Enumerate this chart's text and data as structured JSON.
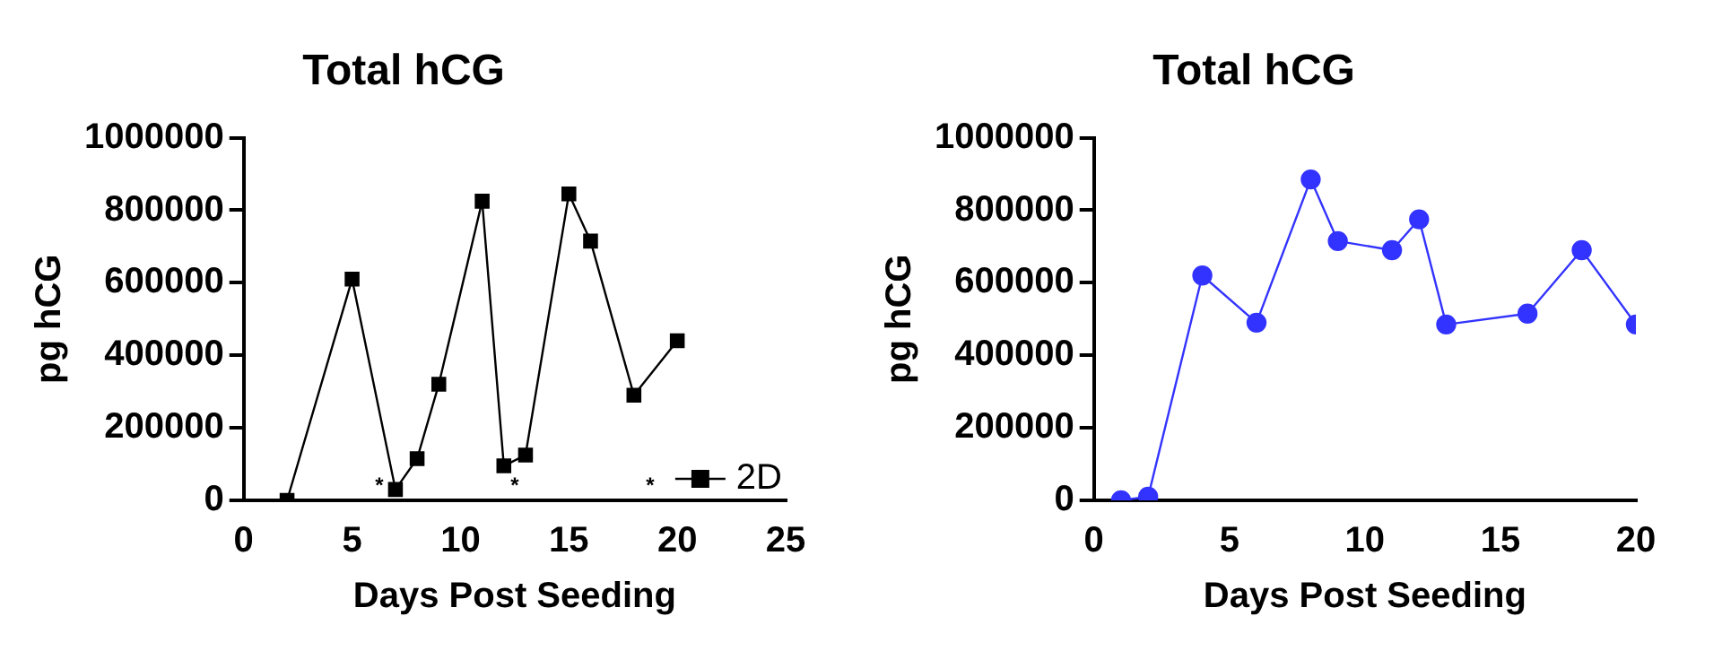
{
  "chart_data": [
    {
      "type": "line",
      "title": "Total hCG",
      "xlabel": "Days Post Seeding",
      "ylabel": "pg hCG",
      "x": [
        2,
        5,
        7,
        8,
        9,
        11,
        12,
        13,
        15,
        16,
        18,
        20
      ],
      "series": [
        {
          "name": "2D",
          "color": "#000000",
          "values": [
            0,
            610000,
            30000,
            115000,
            320000,
            825000,
            95000,
            125000,
            845000,
            715000,
            290000,
            440000
          ]
        }
      ],
      "xlim": [
        0,
        25
      ],
      "xticks": [
        0,
        5,
        10,
        15,
        20,
        25
      ],
      "ylim": [
        0,
        1000000
      ],
      "yticks": [
        0,
        200000,
        400000,
        600000,
        800000,
        1000000
      ],
      "marker": "square",
      "legend": "bottom right",
      "grid": false,
      "annotations": [
        "*",
        "*",
        "*"
      ]
    },
    {
      "type": "line",
      "title": "Total hCG",
      "xlabel": "Days Post Seeding",
      "ylabel": "pg hCG",
      "x": [
        1,
        2,
        4,
        6,
        8,
        9,
        11,
        12,
        13,
        16,
        18,
        20
      ],
      "series": [
        {
          "color": "#3333ff",
          "values": [
            0,
            10000,
            620000,
            490000,
            885000,
            715000,
            690000,
            775000,
            485000,
            515000,
            690000,
            485000
          ]
        }
      ],
      "xlim": [
        0,
        20
      ],
      "xticks": [
        0,
        5,
        10,
        15,
        20
      ],
      "ylim": [
        0,
        1000000
      ],
      "yticks": [
        0,
        200000,
        400000,
        600000,
        800000,
        1000000
      ],
      "marker": "circle",
      "grid": false
    }
  ]
}
